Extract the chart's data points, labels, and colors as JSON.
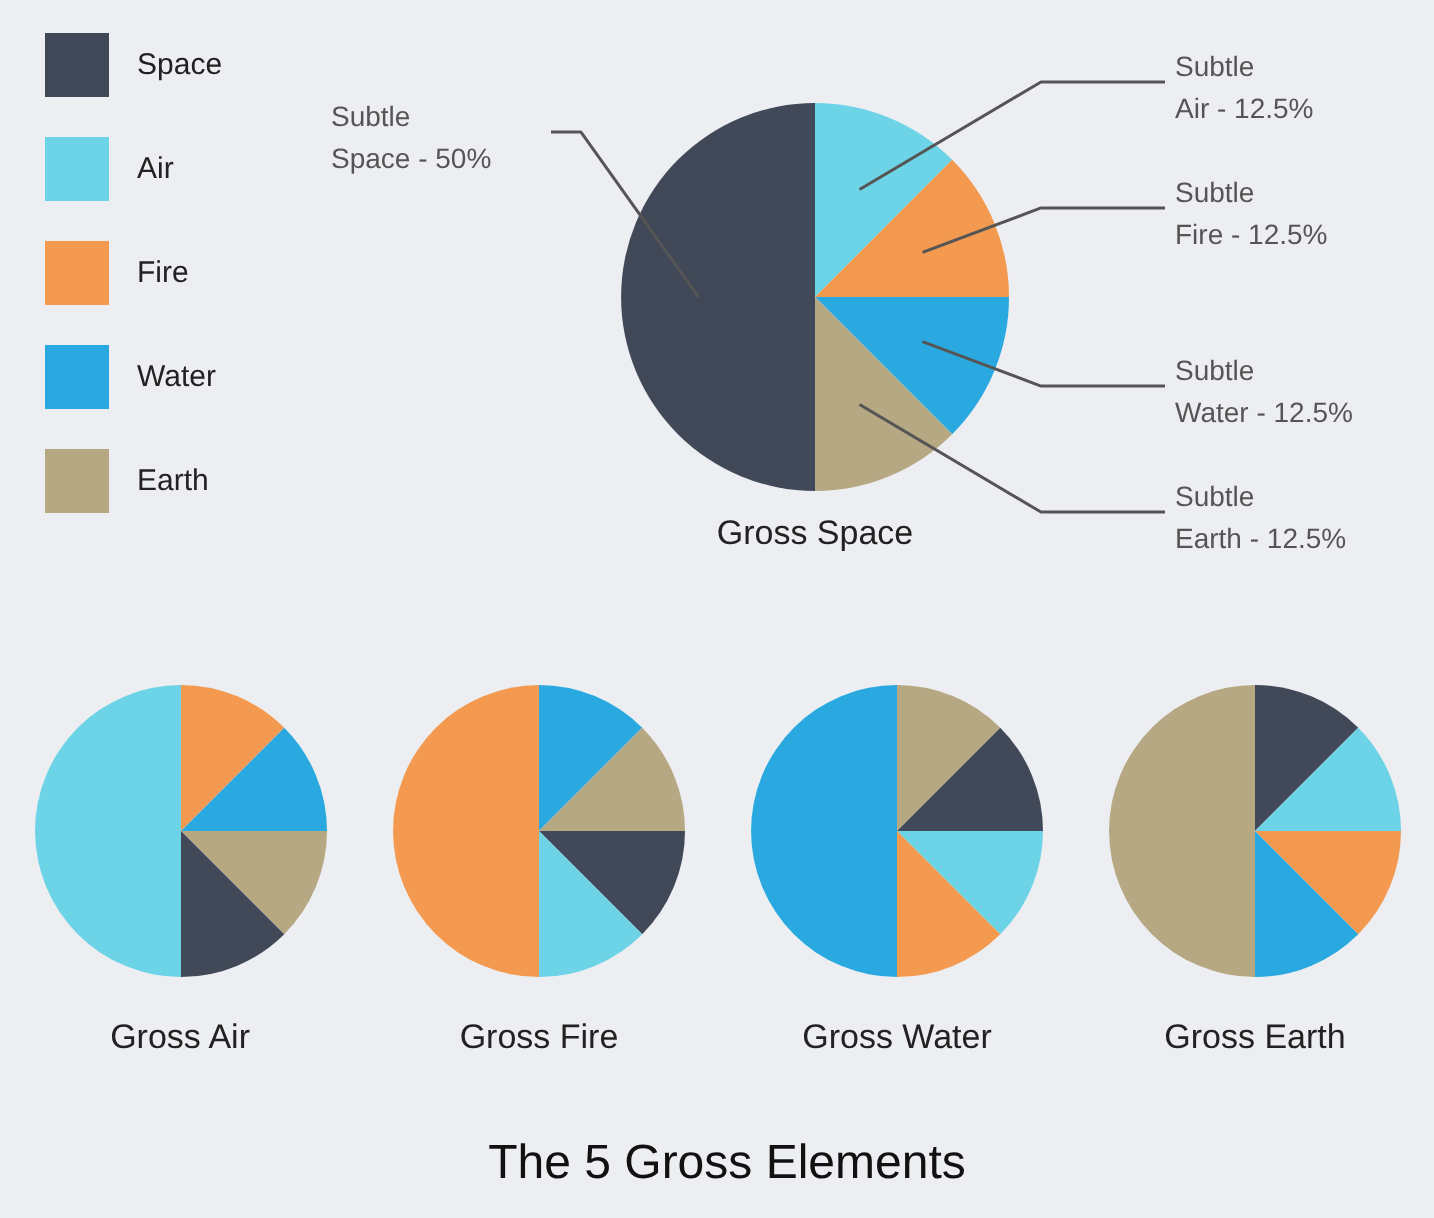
{
  "chart_data": [
    {
      "type": "pie",
      "title": "Gross Space",
      "categories": [
        "Space",
        "Air",
        "Fire",
        "Water",
        "Earth"
      ],
      "values": [
        50,
        12.5,
        12.5,
        12.5,
        12.5
      ],
      "colors": [
        "#414958",
        "#6dd3e6",
        "#f39a50",
        "#2aa9e0",
        "#b5a882"
      ],
      "legend": "top left",
      "annotations": [
        "Subtle\nSpace - 50%",
        "Subtle\nAir - 12.5%",
        "Subtle\nFire - 12.5%",
        "Subtle\nWater - 12.5%",
        "Subtle\nEarth - 12.5%",
        "The 5 Gross Elements"
      ]
    },
    {
      "type": "pie",
      "title": "Gross Air",
      "categories": [
        null,
        null,
        null,
        null,
        null
      ],
      "values": [
        50,
        12.5,
        12.5,
        12.5,
        12.5
      ],
      "colors": [
        "#6dd3e6",
        "#f39a50",
        "#2aa9e0",
        "#b5a882",
        "#414958"
      ]
    },
    {
      "type": "pie",
      "title": "Gross Fire",
      "categories": [
        null,
        null,
        null,
        null,
        null
      ],
      "values": [
        50,
        12.5,
        12.5,
        12.5,
        12.5
      ],
      "colors": [
        "#f39a50",
        "#2aa9e0",
        "#b5a882",
        "#414958",
        "#6dd3e6"
      ]
    },
    {
      "type": "pie",
      "title": "Gross Water",
      "categories": [
        null,
        null,
        null,
        null,
        null
      ],
      "values": [
        50,
        12.5,
        12.5,
        12.5,
        12.5
      ],
      "colors": [
        "#2aa9e0",
        "#b5a882",
        "#414958",
        "#6dd3e6",
        "#f39a50"
      ]
    },
    {
      "type": "pie",
      "title": "Gross Earth",
      "categories": [
        null,
        null,
        null,
        null,
        null
      ],
      "values": [
        50,
        12.5,
        12.5,
        12.5,
        12.5
      ],
      "colors": [
        "#b5a882",
        "#414958",
        "#6dd3e6",
        "#f39a50",
        "#2aa9e0"
      ]
    }
  ]
}
